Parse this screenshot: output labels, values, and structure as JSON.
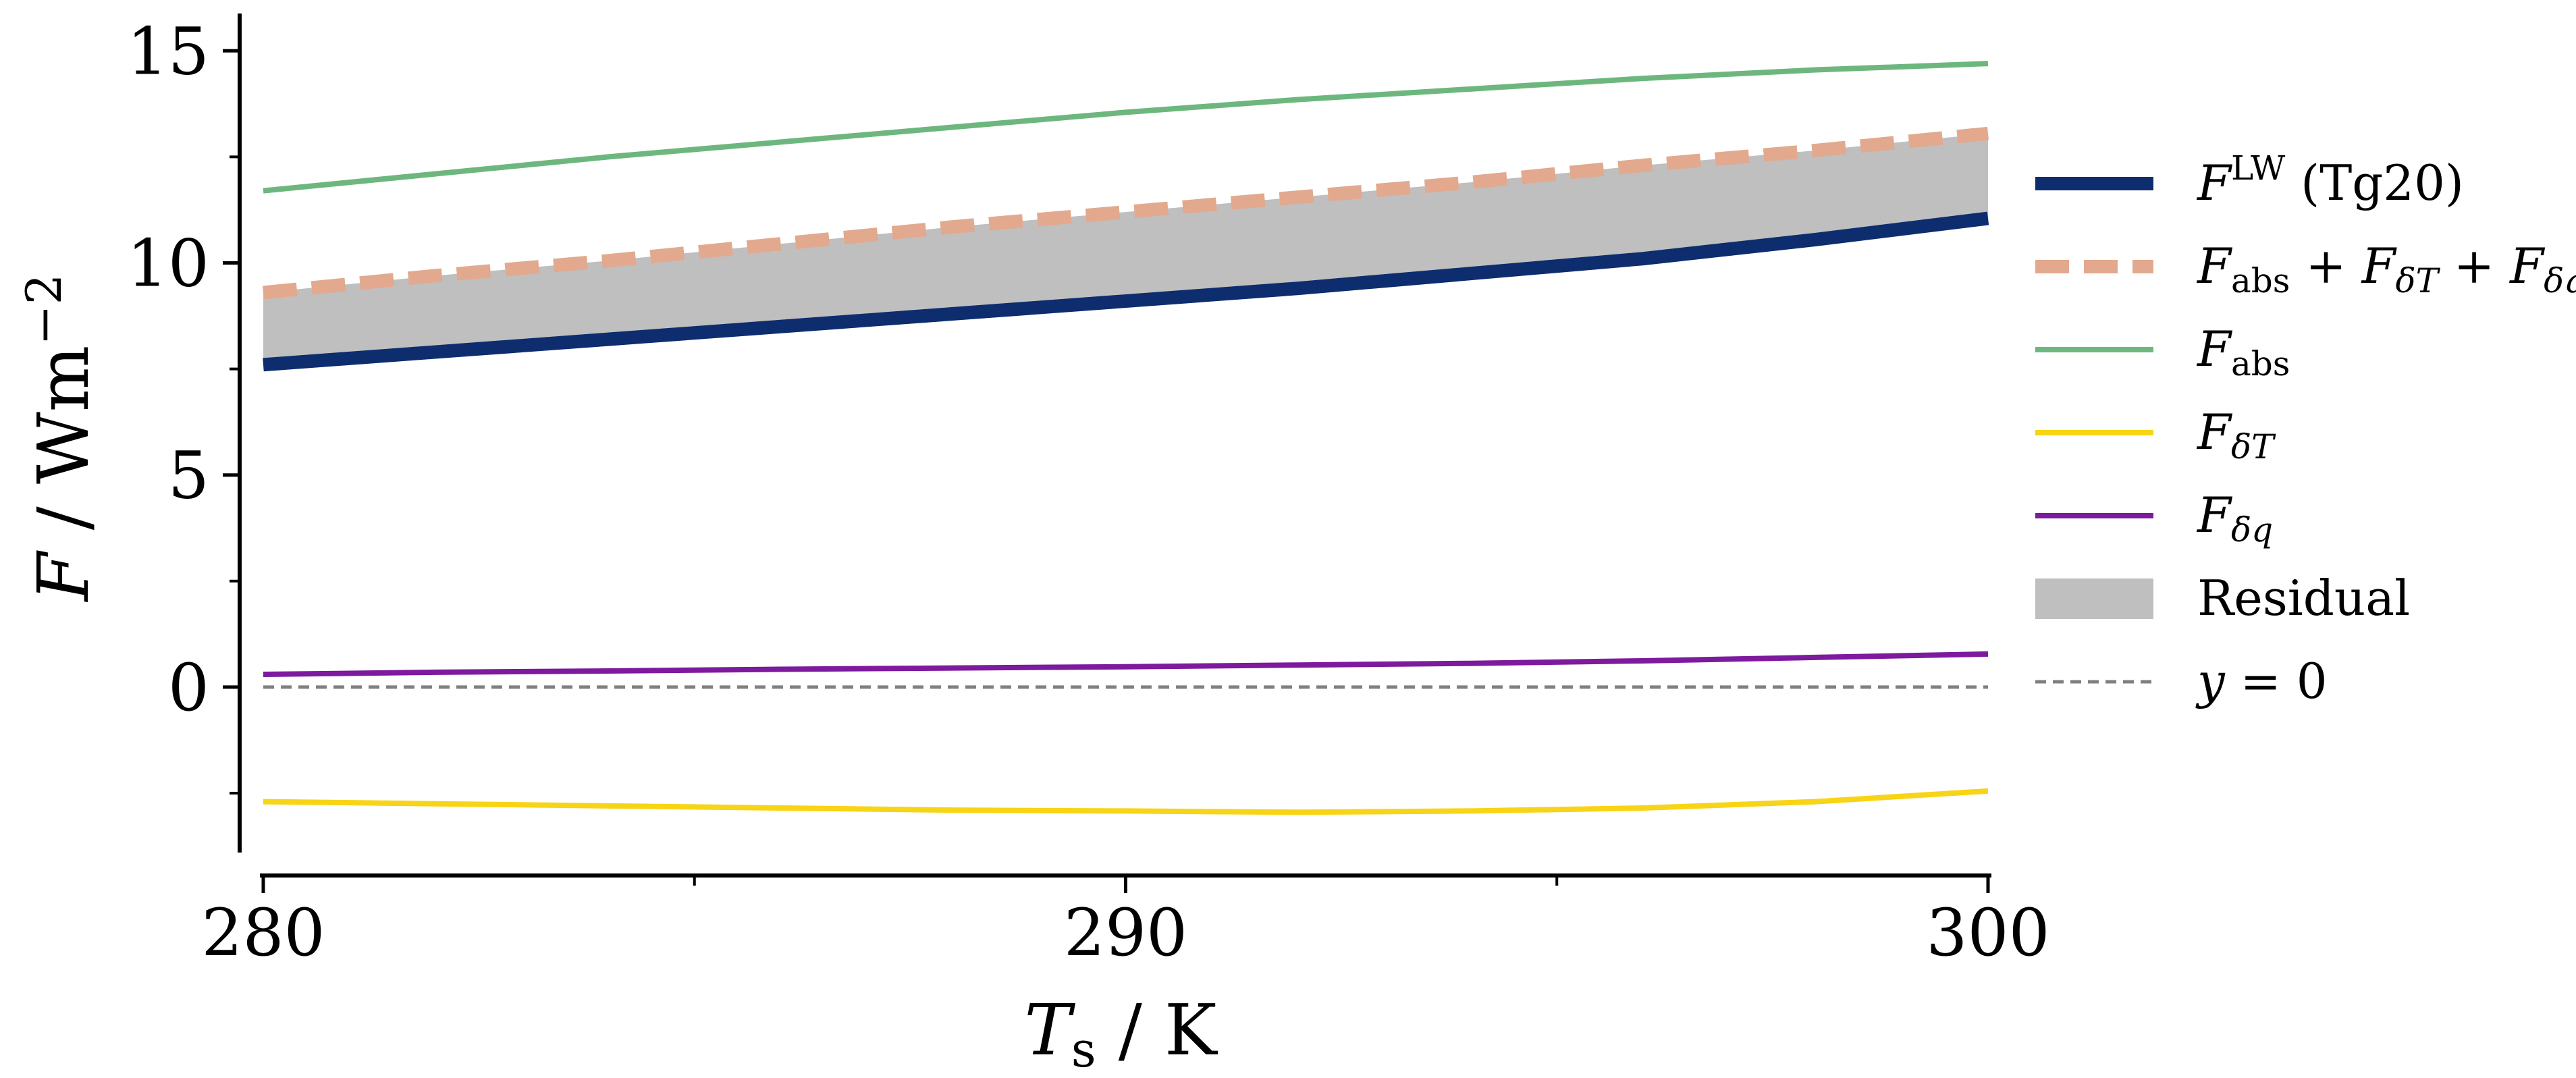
{
  "chart_data": {
    "type": "line",
    "xlabel": "T_s / K",
    "ylabel": "F / Wm^-2",
    "xlim": [
      280,
      300
    ],
    "ylim": [
      -3.9,
      15.8
    ],
    "xticks": [
      "280",
      "290",
      "300"
    ],
    "yticks": [
      "0",
      "5",
      "10",
      "15"
    ],
    "grid": false,
    "legend_position": "right",
    "x": [
      280,
      282,
      284,
      286,
      288,
      290,
      292,
      294,
      296,
      298,
      300
    ],
    "series": [
      {
        "key": "flw",
        "name": "F^LW (Tg20)",
        "color": "#0e2d6e",
        "style": "solid-thick",
        "values": [
          7.6,
          7.9,
          8.2,
          8.5,
          8.8,
          9.1,
          9.4,
          9.75,
          10.1,
          10.55,
          11.05
        ]
      },
      {
        "key": "fsum",
        "name": "F_abs + F_δT + F_δq",
        "color": "#e2a98e",
        "style": "dashed-thick",
        "values": [
          9.3,
          9.7,
          10.05,
          10.45,
          10.85,
          11.2,
          11.55,
          11.9,
          12.3,
          12.65,
          13.05
        ]
      },
      {
        "key": "fabs",
        "name": "F_abs",
        "color": "#6db77f",
        "style": "solid",
        "values": [
          11.7,
          12.1,
          12.5,
          12.85,
          13.2,
          13.55,
          13.85,
          14.1,
          14.35,
          14.55,
          14.7
        ]
      },
      {
        "key": "fdT",
        "name": "F_δT",
        "color": "#f7d415",
        "style": "solid",
        "values": [
          -2.7,
          -2.75,
          -2.8,
          -2.85,
          -2.9,
          -2.92,
          -2.95,
          -2.92,
          -2.85,
          -2.7,
          -2.45
        ]
      },
      {
        "key": "fdq",
        "name": "F_δq",
        "color": "#7d1a9e",
        "style": "solid",
        "values": [
          0.3,
          0.35,
          0.38,
          0.42,
          0.45,
          0.48,
          0.52,
          0.56,
          0.62,
          0.7,
          0.78
        ]
      }
    ],
    "residual": {
      "name": "Residual",
      "color": "#bfbfbf"
    },
    "zero_line": {
      "name": "y = 0",
      "color": "#808080"
    }
  }
}
